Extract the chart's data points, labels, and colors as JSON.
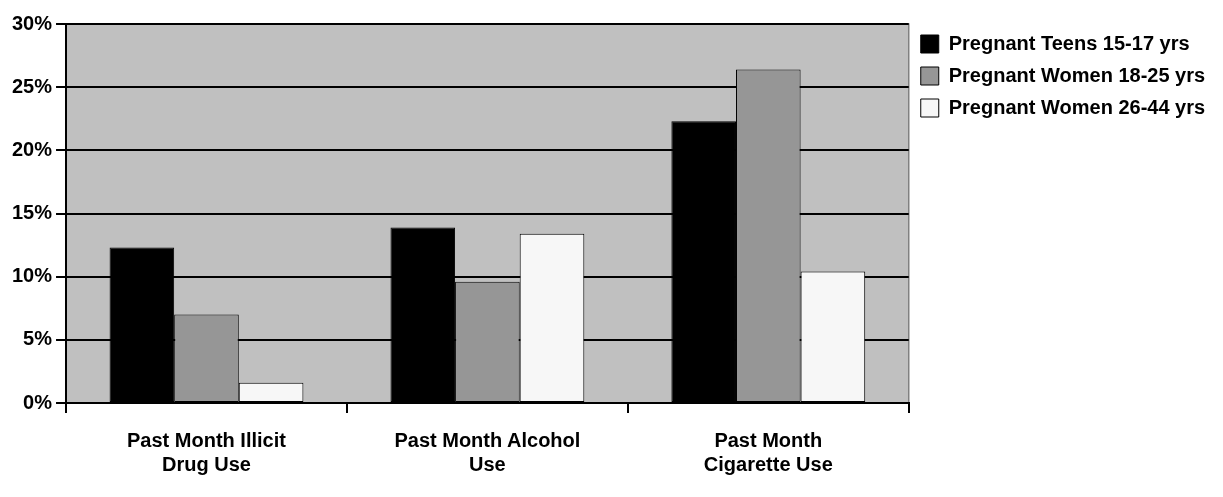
{
  "chart_data": {
    "type": "bar",
    "categories": [
      "Past Month Illicit Drug Use",
      "Past Month Alcohol Use",
      "Past Month Cigarette Use"
    ],
    "series": [
      {
        "name": "Pregnant Teens 15-17 yrs",
        "color": "#000000",
        "values": [
          12.3,
          13.9,
          22.3
        ]
      },
      {
        "name": "Pregnant Women 18-25 yrs",
        "color": "#969696",
        "values": [
          7.0,
          9.6,
          26.4
        ]
      },
      {
        "name": "Pregnant Women 26-44 yrs",
        "color": "#f7f7f7",
        "values": [
          1.6,
          13.4,
          10.4
        ]
      }
    ],
    "ylim": [
      0,
      30
    ],
    "yticks": [
      {
        "value": 0,
        "label": "0%"
      },
      {
        "value": 5,
        "label": "5%"
      },
      {
        "value": 10,
        "label": "10%"
      },
      {
        "value": 15,
        "label": "15%"
      },
      {
        "value": 20,
        "label": "20%"
      },
      {
        "value": 25,
        "label": "25%"
      },
      {
        "value": 30,
        "label": "30%"
      }
    ],
    "grid": "y",
    "legend": "right"
  }
}
